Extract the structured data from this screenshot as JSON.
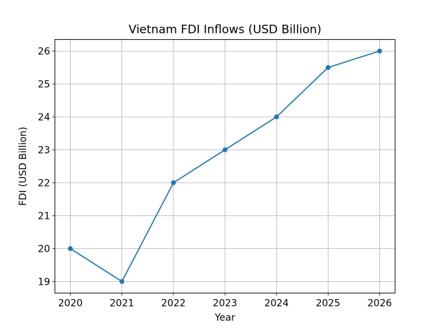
{
  "chart_data": {
    "type": "line",
    "title": "Vietnam FDI Inflows (USD Billion)",
    "xlabel": "Year",
    "ylabel": "FDI (USD Billion)",
    "x": [
      2020,
      2021,
      2022,
      2023,
      2024,
      2025,
      2026
    ],
    "values": [
      20,
      19,
      22,
      23,
      24,
      25.5,
      26
    ],
    "xticks": [
      2020,
      2021,
      2022,
      2023,
      2024,
      2025,
      2026
    ],
    "yticks": [
      19,
      20,
      21,
      22,
      23,
      24,
      25,
      26
    ],
    "xlim": [
      2019.7,
      2026.3
    ],
    "ylim": [
      18.65,
      26.35
    ],
    "grid": true,
    "line_color": "#1f77b4",
    "marker": "circle",
    "grid_color": "#b0b0b0",
    "axis_color": "#000000"
  }
}
